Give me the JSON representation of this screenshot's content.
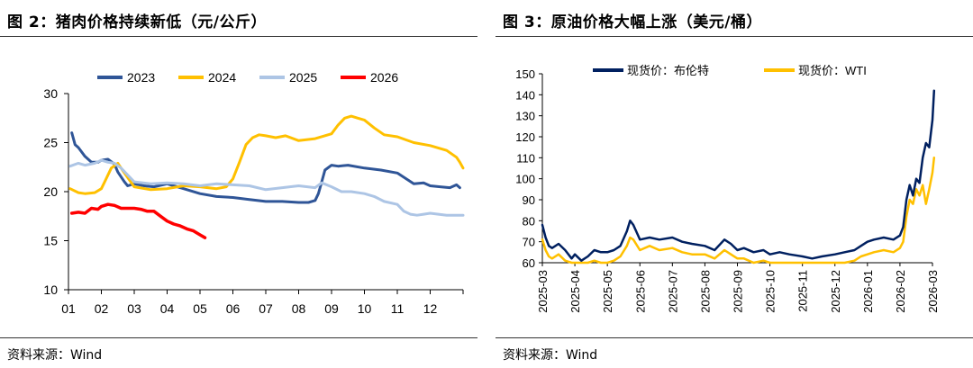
{
  "colors": {
    "c2023": "#2F5597",
    "c2024": "#FFC000",
    "c2025": "#ADC5E5",
    "c2026": "#FF0000",
    "brent": "#002060",
    "wti": "#FFC000"
  },
  "left": {
    "title": "图 2：猪肉价格持续新低（元/公斤）",
    "source": "资料来源：Wind",
    "chart_data": {
      "type": "line",
      "title": "猪肉价格持续新低（元/公斤）",
      "xlabel": "",
      "ylabel": "元/公斤",
      "ylim": [
        10,
        30
      ],
      "yticks": [
        "10",
        "15",
        "20",
        "25",
        "30"
      ],
      "x_range": [
        0,
        12
      ],
      "xticks": [
        "01",
        "02",
        "03",
        "04",
        "05",
        "06",
        "07",
        "08",
        "09",
        "10",
        "11",
        "12"
      ],
      "legend_position": "top",
      "series": [
        {
          "name": "2023",
          "color": "#2F5597",
          "x": [
            0.1,
            0.2,
            0.3,
            0.5,
            0.7,
            0.9,
            1.0,
            1.2,
            1.4,
            1.5,
            1.7,
            1.8,
            2.0,
            2.3,
            2.6,
            3.0,
            3.5,
            4.0,
            4.5,
            5.0,
            5.5,
            6.0,
            6.5,
            7.0,
            7.3,
            7.5,
            7.6,
            7.7,
            7.8,
            8.0,
            8.2,
            8.5,
            9.0,
            9.5,
            10.0,
            10.5,
            10.8,
            11.0,
            11.3,
            11.6,
            11.8,
            11.9
          ],
          "y": [
            26.0,
            24.8,
            24.5,
            23.6,
            23.0,
            23.0,
            23.2,
            23.3,
            22.8,
            22.0,
            21.0,
            20.6,
            20.8,
            20.6,
            20.5,
            20.8,
            20.3,
            19.8,
            19.5,
            19.4,
            19.2,
            19.0,
            19.0,
            18.9,
            18.9,
            19.1,
            19.8,
            21.0,
            22.2,
            22.7,
            22.6,
            22.7,
            22.4,
            22.2,
            21.9,
            20.8,
            20.9,
            20.6,
            20.5,
            20.4,
            20.7,
            20.4
          ]
        },
        {
          "name": "2024",
          "color": "#FFC000",
          "x": [
            0.05,
            0.3,
            0.5,
            0.8,
            1.0,
            1.1,
            1.3,
            1.5,
            1.7,
            2.0,
            2.5,
            3.0,
            3.5,
            4.0,
            4.5,
            4.8,
            5.0,
            5.2,
            5.4,
            5.6,
            5.8,
            6.0,
            6.3,
            6.6,
            7.0,
            7.5,
            8.0,
            8.2,
            8.4,
            8.6,
            8.8,
            9.0,
            9.3,
            9.6,
            10.0,
            10.5,
            11.0,
            11.5,
            11.8,
            11.9,
            12.0
          ],
          "y": [
            20.3,
            19.9,
            19.8,
            19.9,
            20.3,
            21.0,
            22.4,
            22.9,
            21.9,
            20.5,
            20.2,
            20.3,
            20.6,
            20.5,
            20.3,
            20.5,
            21.3,
            23.0,
            24.8,
            25.5,
            25.8,
            25.7,
            25.5,
            25.7,
            25.2,
            25.4,
            25.9,
            26.8,
            27.5,
            27.7,
            27.5,
            27.3,
            26.5,
            25.8,
            25.6,
            25.0,
            24.7,
            24.2,
            23.5,
            23.0,
            22.4
          ]
        },
        {
          "name": "2025",
          "color": "#ADC5E5",
          "x": [
            0.05,
            0.3,
            0.5,
            0.8,
            1.0,
            1.2,
            1.4,
            1.6,
            2.0,
            2.5,
            3.0,
            3.5,
            4.0,
            4.5,
            5.0,
            5.5,
            6.0,
            6.5,
            7.0,
            7.5,
            7.7,
            8.0,
            8.3,
            8.6,
            9.0,
            9.3,
            9.6,
            10.0,
            10.2,
            10.4,
            10.6,
            10.8,
            11.0,
            11.5,
            12.0
          ],
          "y": [
            22.6,
            22.9,
            22.7,
            22.9,
            23.2,
            23.0,
            22.9,
            22.4,
            21.0,
            20.8,
            20.9,
            20.8,
            20.6,
            20.8,
            20.7,
            20.6,
            20.2,
            20.4,
            20.6,
            20.4,
            20.9,
            20.5,
            20.0,
            20.0,
            19.8,
            19.5,
            19.0,
            18.7,
            18.0,
            17.7,
            17.6,
            17.7,
            17.8,
            17.6,
            17.6
          ]
        },
        {
          "name": "2026",
          "color": "#FF0000",
          "x": [
            0.1,
            0.3,
            0.5,
            0.7,
            0.9,
            1.0,
            1.2,
            1.4,
            1.6,
            1.8,
            2.0,
            2.2,
            2.4,
            2.6,
            2.8,
            3.0,
            3.2,
            3.4,
            3.6,
            3.8,
            4.0,
            4.15
          ],
          "y": [
            17.8,
            17.9,
            17.8,
            18.3,
            18.2,
            18.5,
            18.7,
            18.6,
            18.3,
            18.3,
            18.3,
            18.2,
            18.0,
            18.0,
            17.5,
            17.0,
            16.7,
            16.5,
            16.2,
            16.0,
            15.6,
            15.3
          ]
        }
      ]
    }
  },
  "right": {
    "title": "图 3：原油价格大幅上涨（美元/桶）",
    "source": "资料来源：Wind",
    "chart_data": {
      "type": "line",
      "title": "原油价格大幅上涨（美元/桶）",
      "xlabel": "",
      "ylabel": "美元/桶",
      "ylim": [
        60,
        150
      ],
      "yticks": [
        "60",
        "70",
        "80",
        "90",
        "100",
        "110",
        "120",
        "130",
        "140",
        "150"
      ],
      "x_range": [
        0,
        12
      ],
      "xticks": [
        "2025-03",
        "2025-04",
        "2025-05",
        "2025-06",
        "2025-07",
        "2025-08",
        "2025-09",
        "2025-10",
        "2025-11",
        "2025-12",
        "2026-01",
        "2026-02",
        "2026-03"
      ],
      "legend_position": "top",
      "series": [
        {
          "name": "现货价：布伦特",
          "color": "#002060",
          "x": [
            0.0,
            0.1,
            0.2,
            0.3,
            0.5,
            0.7,
            0.9,
            1.0,
            1.2,
            1.4,
            1.6,
            1.8,
            2.0,
            2.2,
            2.4,
            2.6,
            2.7,
            2.8,
            3.0,
            3.3,
            3.6,
            4.0,
            4.3,
            4.6,
            5.0,
            5.3,
            5.6,
            5.8,
            6.0,
            6.2,
            6.5,
            6.8,
            7.0,
            7.3,
            7.6,
            8.0,
            8.3,
            8.6,
            9.0,
            9.3,
            9.6,
            9.8,
            10.0,
            10.2,
            10.5,
            10.8,
            11.0,
            11.1,
            11.2,
            11.3,
            11.4,
            11.5,
            11.6,
            11.7,
            11.8,
            11.9,
            12.0,
            12.05
          ],
          "y": [
            78,
            72,
            68,
            67,
            69,
            66,
            62,
            64,
            61,
            63,
            66,
            65,
            65,
            66,
            68,
            75,
            80,
            78,
            71,
            72,
            71,
            72,
            70,
            69,
            68,
            66,
            71,
            69,
            66,
            67,
            65,
            66,
            64,
            65,
            64,
            63,
            62,
            63,
            64,
            65,
            66,
            68,
            70,
            71,
            72,
            71,
            73,
            77,
            90,
            97,
            92,
            100,
            98,
            110,
            117,
            115,
            128,
            142
          ]
        },
        {
          "name": "现货价：WTI",
          "color": "#FFC000",
          "x": [
            0.0,
            0.1,
            0.2,
            0.3,
            0.5,
            0.7,
            0.9,
            1.0,
            1.2,
            1.4,
            1.6,
            1.8,
            2.0,
            2.2,
            2.4,
            2.6,
            2.7,
            2.8,
            3.0,
            3.3,
            3.6,
            4.0,
            4.3,
            4.6,
            5.0,
            5.3,
            5.6,
            5.8,
            6.0,
            6.2,
            6.5,
            6.8,
            7.0,
            7.3,
            7.6,
            8.0,
            8.3,
            8.6,
            9.0,
            9.3,
            9.6,
            9.8,
            10.0,
            10.2,
            10.5,
            10.8,
            11.0,
            11.1,
            11.2,
            11.3,
            11.4,
            11.5,
            11.6,
            11.7,
            11.8,
            11.9,
            12.0,
            12.05
          ],
          "y": [
            71,
            66,
            63,
            62,
            64,
            61,
            58,
            59,
            58,
            59,
            61,
            60,
            60,
            61,
            63,
            68,
            72,
            71,
            66,
            68,
            66,
            67,
            65,
            64,
            64,
            62,
            66,
            64,
            62,
            62,
            60,
            61,
            59,
            60,
            59,
            58,
            58,
            58,
            59,
            60,
            61,
            63,
            64,
            65,
            66,
            65,
            67,
            70,
            82,
            90,
            88,
            95,
            92,
            97,
            88,
            95,
            103,
            110
          ]
        }
      ]
    }
  }
}
